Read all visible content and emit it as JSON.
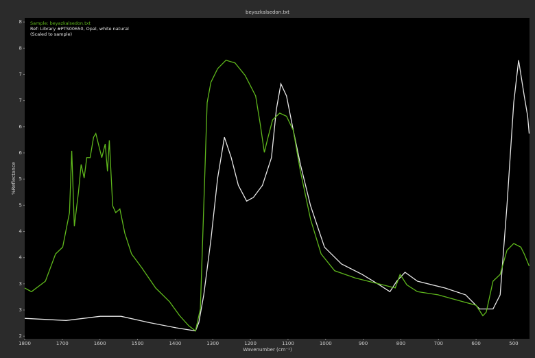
{
  "chart_data": {
    "type": "line",
    "title": "beyazkalsedon.txt",
    "xlabel": "Wavenumber (cm⁻¹)",
    "ylabel": "%Reflectance",
    "xlim": [
      1800,
      458
    ],
    "ylim": [
      1.95,
      8.08
    ],
    "xticks": [
      1800,
      1700,
      1600,
      1500,
      1400,
      1300,
      1200,
      1100,
      1000,
      900,
      800,
      700,
      600,
      500
    ],
    "yticks": [
      2,
      {
        "value": 2.5,
        "label": "3"
      },
      3,
      {
        "value": 3.5,
        "label": "4"
      },
      4,
      {
        "value": 4.5,
        "label": "5"
      },
      5,
      {
        "value": 5.5,
        "label": "6"
      },
      6,
      {
        "value": 6.5,
        "label": "7"
      },
      7,
      {
        "value": 7.5,
        "label": "8"
      },
      8
    ],
    "series": [
      {
        "name": "Sample: beyazkalsedon.txt",
        "color": "#5fb81c",
        "x": [
          1800,
          1782,
          1745,
          1718,
          1699,
          1681,
          1675,
          1668,
          1657,
          1650,
          1642,
          1635,
          1626,
          1617,
          1611,
          1602,
          1595,
          1586,
          1580,
          1575,
          1566,
          1558,
          1547,
          1534,
          1516,
          1489,
          1452,
          1415,
          1388,
          1364,
          1346,
          1333,
          1324,
          1315,
          1305,
          1287,
          1265,
          1241,
          1214,
          1186,
          1174,
          1163,
          1153,
          1141,
          1122,
          1104,
          1086,
          1067,
          1040,
          1012,
          976,
          921,
          848,
          815,
          802,
          784,
          756,
          701,
          646,
          600,
          582,
          573,
          555,
          536,
          518,
          500,
          481,
          472,
          459
        ],
        "values": [
          2.92,
          2.85,
          3.05,
          3.57,
          3.7,
          4.36,
          5.54,
          4.1,
          4.75,
          5.28,
          5.02,
          5.41,
          5.41,
          5.8,
          5.87,
          5.61,
          5.41,
          5.67,
          5.15,
          5.74,
          4.49,
          4.36,
          4.43,
          3.97,
          3.57,
          3.31,
          2.92,
          2.66,
          2.39,
          2.2,
          2.1,
          2.52,
          4.49,
          6.46,
          6.85,
          7.11,
          7.27,
          7.22,
          6.98,
          6.59,
          6.06,
          5.51,
          5.8,
          6.13,
          6.26,
          6.2,
          5.93,
          5.15,
          4.23,
          3.57,
          3.25,
          3.11,
          2.98,
          2.92,
          3.18,
          2.98,
          2.85,
          2.79,
          2.68,
          2.59,
          2.39,
          2.46,
          3.05,
          3.18,
          3.64,
          3.77,
          3.7,
          3.57,
          3.34
        ]
      },
      {
        "name": "Ref: Library #PTS00650, Opal, white natural (Scaled to sample)",
        "color": "#e8e8e8",
        "x": [
          1800,
          1690,
          1599,
          1544,
          1470,
          1397,
          1346,
          1337,
          1324,
          1305,
          1287,
          1269,
          1251,
          1232,
          1210,
          1192,
          1168,
          1144,
          1131,
          1119,
          1104,
          1086,
          1067,
          1040,
          1003,
          958,
          903,
          857,
          829,
          811,
          789,
          756,
          683,
          628,
          591,
          555,
          536,
          518,
          500,
          487,
          472,
          463,
          459
        ],
        "values": [
          2.34,
          2.3,
          2.38,
          2.38,
          2.26,
          2.16,
          2.1,
          2.26,
          2.79,
          3.84,
          5.02,
          5.8,
          5.41,
          4.88,
          4.58,
          4.65,
          4.88,
          5.41,
          6.33,
          6.82,
          6.59,
          5.93,
          5.28,
          4.49,
          3.7,
          3.38,
          3.18,
          2.98,
          2.85,
          3.05,
          3.22,
          3.05,
          2.92,
          2.79,
          2.52,
          2.52,
          2.79,
          4.49,
          6.46,
          7.27,
          6.59,
          6.2,
          5.87
        ]
      }
    ]
  }
}
